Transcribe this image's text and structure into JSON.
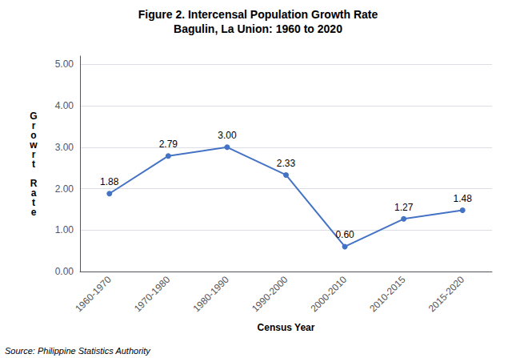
{
  "chart_data": {
    "type": "line",
    "title": "Figure 2. Intercensal Population Growth Rate",
    "subtitle": "Bagulin, La Union: 1960 to 2020",
    "xlabel": "Census Year",
    "ylabel": "Growrt Rate",
    "annotations": [
      "Source: Philippine Statistics Authority"
    ],
    "categories": [
      "1960-1970",
      "1970-1980",
      "1980-1990",
      "1990-2000",
      "2000-2010",
      "2010-2015",
      "2015-2020"
    ],
    "values": [
      1.88,
      2.79,
      3.0,
      2.33,
      0.6,
      1.27,
      1.48
    ],
    "value_labels": [
      "1.88",
      "2.79",
      "3.00",
      "2.33",
      "0.60",
      "1.27",
      "1.48"
    ],
    "data_labels": true,
    "color": "#4472C4",
    "marker": "circle",
    "ylim": [
      0.0,
      5.2
    ],
    "yticks": [
      {
        "value": 0,
        "label": "0.00"
      },
      {
        "value": 1,
        "label": "1.00"
      },
      {
        "value": 2,
        "label": "2.00"
      },
      {
        "value": 3,
        "label": "3.00"
      },
      {
        "value": 4,
        "label": "4.00"
      },
      {
        "value": 5,
        "label": "5.00"
      }
    ],
    "grid": true
  }
}
